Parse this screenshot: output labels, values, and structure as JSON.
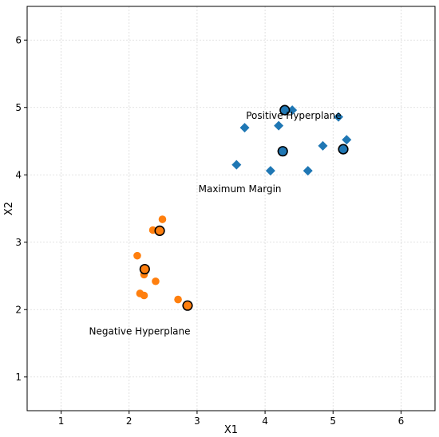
{
  "chart_data": {
    "type": "scatter",
    "title": "",
    "xlabel": "X1",
    "ylabel": "X2",
    "xlim": [
      0.5,
      6.5
    ],
    "ylim": [
      0.5,
      6.5
    ],
    "xticks": [
      1,
      2,
      3,
      4,
      5,
      6
    ],
    "yticks": [
      1,
      2,
      3,
      4,
      5,
      6
    ],
    "grid": true,
    "series": [
      {
        "marker": "diamond",
        "color": "#1f77b4",
        "points": [
          [
            4.3,
            4.95
          ],
          [
            4.4,
            4.96
          ],
          [
            3.7,
            4.7
          ],
          [
            4.2,
            4.73
          ],
          [
            5.08,
            4.86
          ],
          [
            4.85,
            4.43
          ],
          [
            5.2,
            4.52
          ],
          [
            5.15,
            4.38
          ],
          [
            3.58,
            4.15
          ],
          [
            4.08,
            4.06
          ],
          [
            4.63,
            4.06
          ],
          [
            4.25,
            4.35
          ]
        ]
      },
      {
        "marker": "circle",
        "color": "#ff7f0e",
        "points": [
          [
            2.49,
            3.34
          ],
          [
            2.35,
            3.18
          ],
          [
            2.44,
            3.17
          ],
          [
            2.12,
            2.8
          ],
          [
            2.23,
            2.58
          ],
          [
            2.22,
            2.52
          ],
          [
            2.39,
            2.42
          ],
          [
            2.16,
            2.24
          ],
          [
            2.22,
            2.21
          ],
          [
            2.72,
            2.15
          ],
          [
            2.86,
            2.06
          ]
        ]
      }
    ],
    "support_vectors": [
      {
        "x": 4.29,
        "y": 4.96,
        "color": "#1f77b4"
      },
      {
        "x": 4.26,
        "y": 4.35,
        "color": "#1f77b4"
      },
      {
        "x": 5.15,
        "y": 4.38,
        "color": "#1f77b4"
      },
      {
        "x": 2.45,
        "y": 3.17,
        "color": "#ff7f0e"
      },
      {
        "x": 2.23,
        "y": 2.6,
        "color": "#ff7f0e"
      },
      {
        "x": 2.86,
        "y": 2.06,
        "color": "#ff7f0e"
      }
    ],
    "annotations": [
      {
        "text": "Positive Hyperplane",
        "x": 3.72,
        "y": 4.83
      },
      {
        "text": "Maximum Margin",
        "x": 3.02,
        "y": 3.74
      },
      {
        "text": "Negative Hyperplane",
        "x": 1.41,
        "y": 1.63
      }
    ]
  }
}
